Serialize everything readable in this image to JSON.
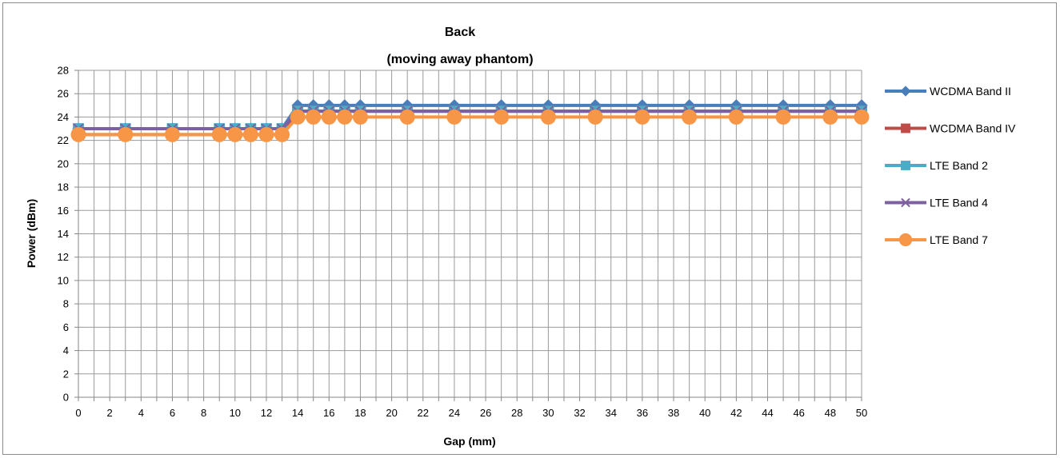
{
  "chart_data": {
    "type": "line",
    "title_line1": "Back",
    "title_line2": "(moving away phantom)",
    "xlabel": "Gap (mm)",
    "ylabel": "Power (dBm)",
    "xlim": [
      0,
      50
    ],
    "ylim": [
      0,
      28
    ],
    "x_ticks": [
      "0",
      "2",
      "4",
      "6",
      "8",
      "10",
      "12",
      "14",
      "16",
      "18",
      "20",
      "22",
      "24",
      "26",
      "28",
      "30",
      "32",
      "34",
      "36",
      "38",
      "40",
      "42",
      "44",
      "46",
      "48",
      "50"
    ],
    "y_ticks": [
      "0",
      "2",
      "4",
      "6",
      "8",
      "10",
      "12",
      "14",
      "16",
      "18",
      "20",
      "22",
      "24",
      "26",
      "28"
    ],
    "grid": true,
    "legend_position": "right",
    "x": [
      0,
      3,
      6,
      9,
      10,
      11,
      12,
      13,
      14,
      15,
      16,
      17,
      18,
      21,
      24,
      27,
      30,
      33,
      36,
      39,
      42,
      45,
      48,
      50
    ],
    "series": [
      {
        "name": "WCDMA Band II",
        "color": "#4a7ebb",
        "marker": "diamond",
        "values": [
          23,
          23,
          23,
          23,
          23,
          23,
          23,
          23,
          25,
          25,
          25,
          25,
          25,
          25,
          25,
          25,
          25,
          25,
          25,
          25,
          25,
          25,
          25,
          25
        ]
      },
      {
        "name": "WCDMA Band IV",
        "color": "#be4b48",
        "marker": "square",
        "values": [
          22.5,
          22.5,
          22.5,
          22.5,
          22.5,
          22.5,
          22.5,
          22.5,
          24.5,
          24.5,
          24.5,
          24.5,
          24.5,
          24.5,
          24.5,
          24.5,
          24.5,
          24.5,
          24.5,
          24.5,
          24.5,
          24.5,
          24.5,
          24.5
        ]
      },
      {
        "name": "LTE Band 2",
        "color": "#4bacc6",
        "marker": "square",
        "values": [
          23,
          23,
          23,
          23,
          23,
          23,
          23,
          23,
          24.5,
          24.5,
          24.5,
          24.5,
          24.5,
          24.5,
          24.5,
          24.5,
          24.5,
          24.5,
          24.5,
          24.5,
          24.5,
          24.5,
          24.5,
          24.5
        ]
      },
      {
        "name": "LTE Band 4",
        "color": "#7d60a0",
        "marker": "x",
        "values": [
          23,
          23,
          23,
          23,
          23,
          23,
          23,
          23,
          24.5,
          24.5,
          24.5,
          24.5,
          24.5,
          24.5,
          24.5,
          24.5,
          24.5,
          24.5,
          24.5,
          24.5,
          24.5,
          24.5,
          24.5,
          24.5
        ]
      },
      {
        "name": "LTE Band 7",
        "color": "#f79646",
        "marker": "circle",
        "values": [
          22.5,
          22.5,
          22.5,
          22.5,
          22.5,
          22.5,
          22.5,
          22.5,
          24,
          24,
          24,
          24,
          24,
          24,
          24,
          24,
          24,
          24,
          24,
          24,
          24,
          24,
          24,
          24
        ]
      }
    ]
  }
}
